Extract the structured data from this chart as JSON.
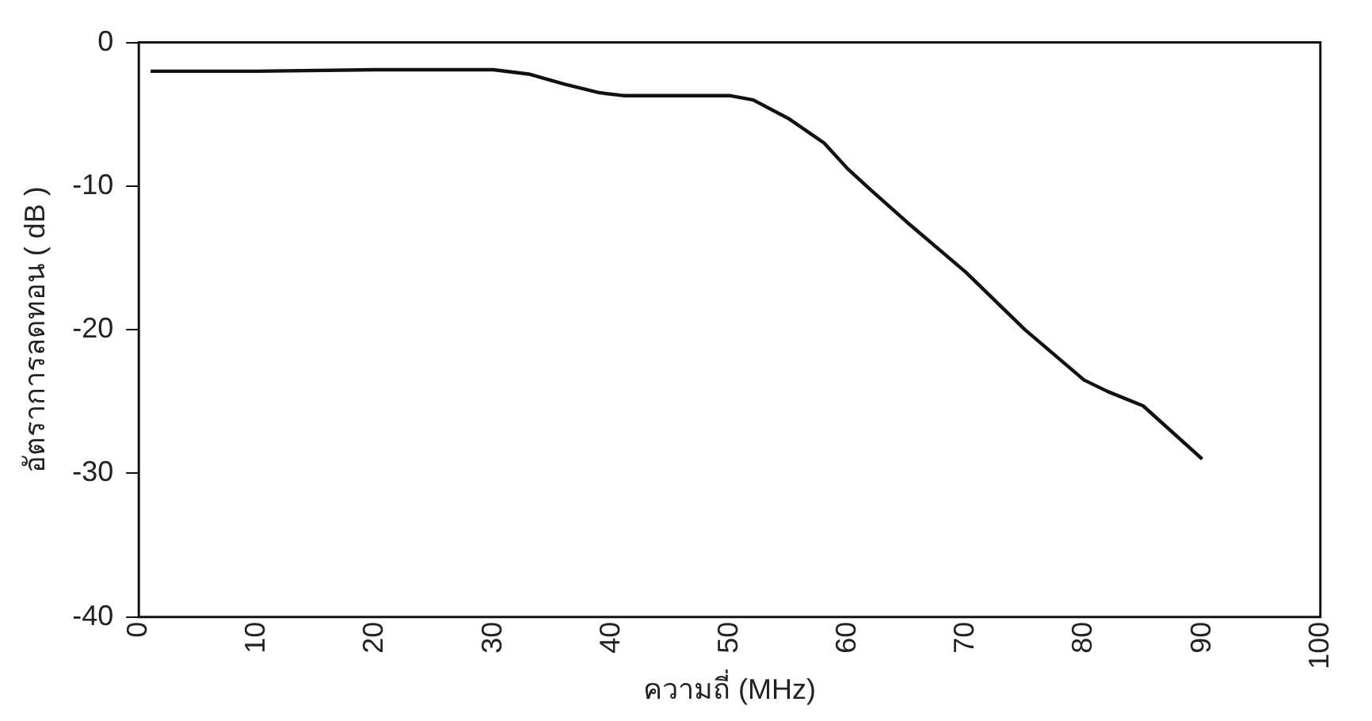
{
  "chart_data": {
    "type": "line",
    "xlabel": "ความถี่ (MHz)",
    "ylabel": "อัตราการลดทอน ( dB )",
    "x": [
      1,
      10,
      20,
      30,
      33,
      36,
      39,
      41,
      45,
      50,
      52,
      55,
      58,
      60,
      62,
      65,
      70,
      75,
      80,
      82,
      85,
      90
    ],
    "series": [
      {
        "color": "#111111",
        "values": [
          -2,
          -2,
          -1.9,
          -1.9,
          -2.2,
          -2.9,
          -3.5,
          -3.7,
          -3.7,
          -3.7,
          -4,
          -5.3,
          -7,
          -8.8,
          -10.3,
          -12.5,
          -16,
          -20,
          -23.5,
          -24.3,
          -25.3,
          -29
        ]
      }
    ],
    "xlim": [
      0,
      100
    ],
    "xticks": [
      0,
      10,
      20,
      30,
      40,
      50,
      60,
      70,
      80,
      90,
      100
    ],
    "ylim": [
      -40,
      0
    ],
    "yticks": [
      0,
      -10,
      -20,
      -30,
      -40
    ],
    "grid": false,
    "legend": false,
    "marker": "none",
    "line_style": "solid"
  }
}
